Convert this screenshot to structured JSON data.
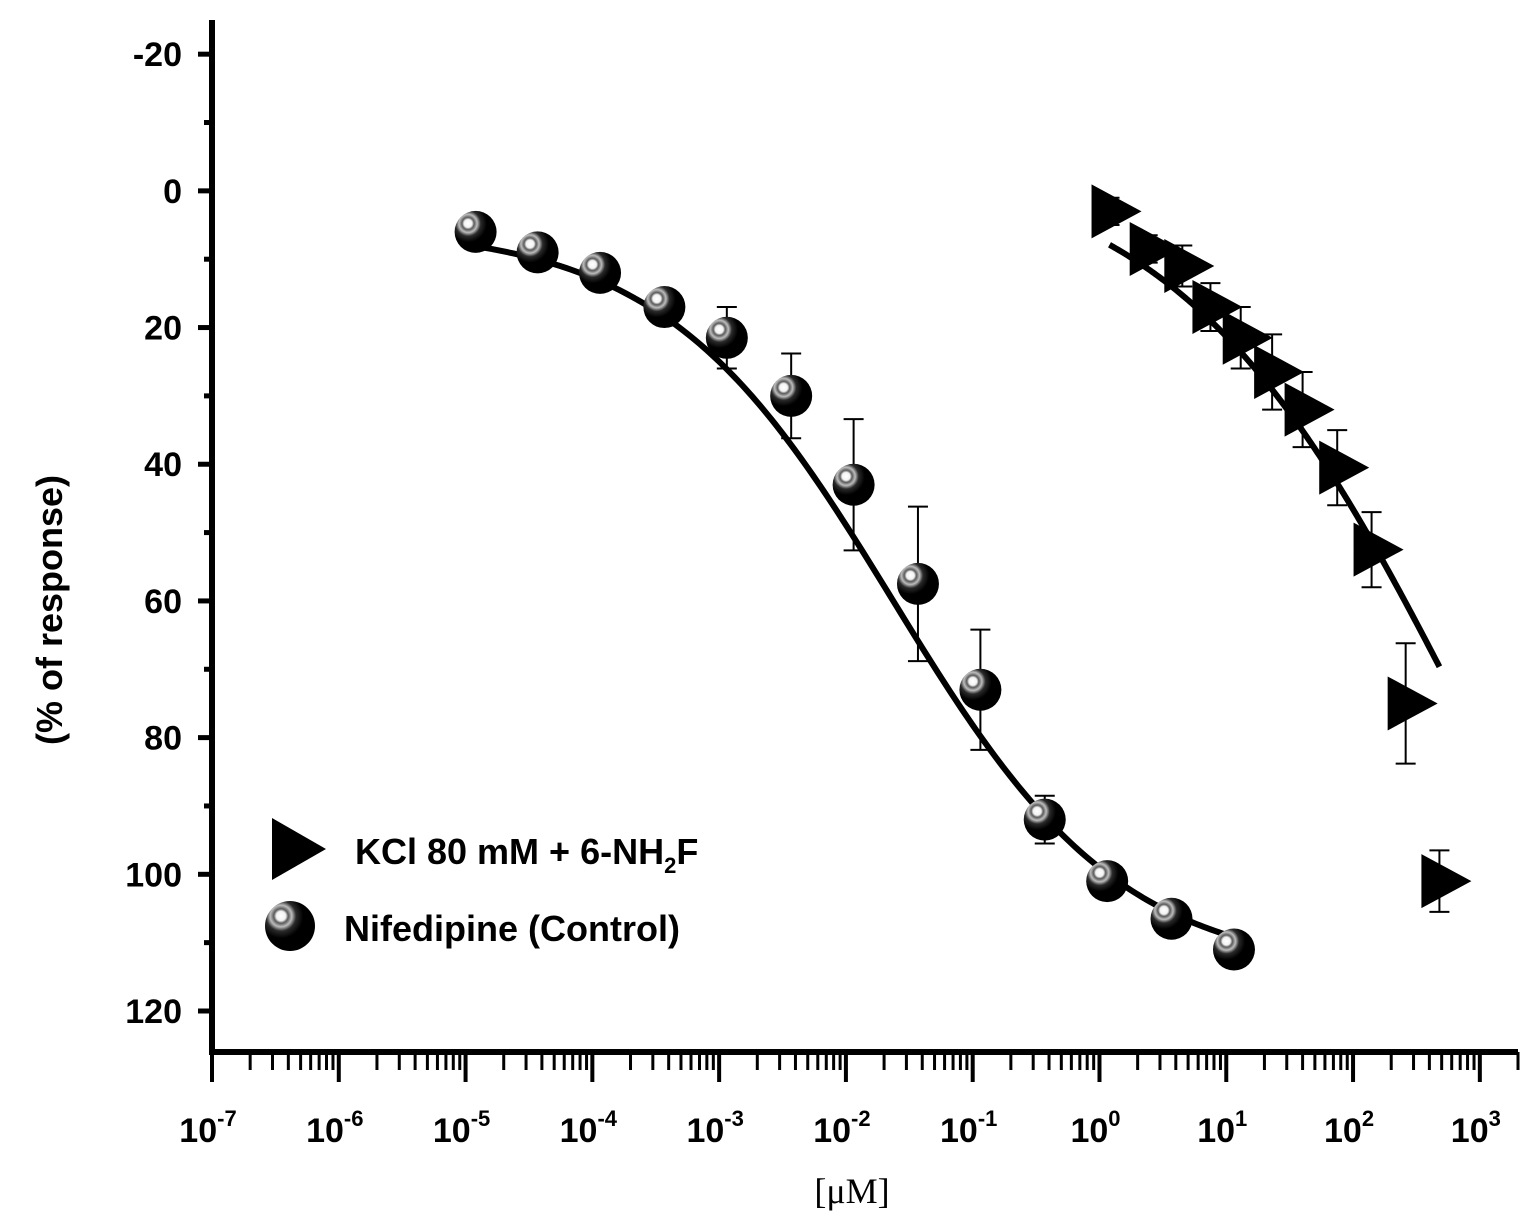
{
  "chart_data": {
    "type": "scatter",
    "title": "",
    "xlabel": "[μM]",
    "ylabel": "(% of response)",
    "xscale": "log",
    "xlim": [
      1e-07,
      2000
    ],
    "ylim": [
      -25,
      126
    ],
    "y_inverted": true,
    "x_ticks": [
      {
        "value": 1e-07,
        "base": "10",
        "exp": "-7"
      },
      {
        "value": 1e-06,
        "base": "10",
        "exp": "-6"
      },
      {
        "value": 1e-05,
        "base": "10",
        "exp": "-5"
      },
      {
        "value": 0.0001,
        "base": "10",
        "exp": "-4"
      },
      {
        "value": 0.001,
        "base": "10",
        "exp": "-3"
      },
      {
        "value": 0.01,
        "base": "10",
        "exp": "-2"
      },
      {
        "value": 0.1,
        "base": "10",
        "exp": "-1"
      },
      {
        "value": 1,
        "base": "10",
        "exp": "0"
      },
      {
        "value": 10,
        "base": "10",
        "exp": "1"
      },
      {
        "value": 100,
        "base": "10",
        "exp": "2"
      },
      {
        "value": 1000,
        "base": "10",
        "exp": "3"
      }
    ],
    "y_ticks": [
      {
        "value": -20,
        "label": "-20"
      },
      {
        "value": 0,
        "label": "0"
      },
      {
        "value": 20,
        "label": "20"
      },
      {
        "value": 40,
        "label": "40"
      },
      {
        "value": 60,
        "label": "60"
      },
      {
        "value": 80,
        "label": "80"
      },
      {
        "value": 100,
        "label": "100"
      },
      {
        "value": 120,
        "label": "120"
      }
    ],
    "legend": {
      "position": "bottom-left",
      "entries": [
        {
          "series": "kcl",
          "label_main": "KCl 80 mM + 6-NH",
          "label_sub": "2",
          "label_end": "F"
        },
        {
          "series": "nifedipine",
          "label_main": "Nifedipine (Control)",
          "label_sub": "",
          "label_end": ""
        }
      ]
    },
    "series": [
      {
        "id": "nifedipine",
        "name": "Nifedipine (Control)",
        "marker": "sphere",
        "color": "#000000",
        "fit": {
          "bottom": 5.3,
          "top": 114.5,
          "log_ic50": -1.63,
          "hill": 0.48
        },
        "points": [
          {
            "x": 1.2e-05,
            "y": 6,
            "err": 0
          },
          {
            "x": 3.7e-05,
            "y": 9,
            "err": 0
          },
          {
            "x": 0.000115,
            "y": 12,
            "err": 0
          },
          {
            "x": 0.00037,
            "y": 17,
            "err": 0
          },
          {
            "x": 0.00115,
            "y": 21.5,
            "err": 4.5
          },
          {
            "x": 0.0037,
            "y": 30,
            "err": 6.2
          },
          {
            "x": 0.0115,
            "y": 43,
            "err": 9.6
          },
          {
            "x": 0.037,
            "y": 57.5,
            "err": 11.3
          },
          {
            "x": 0.115,
            "y": 73,
            "err": 8.8
          },
          {
            "x": 0.37,
            "y": 92,
            "err": 3.5
          },
          {
            "x": 1.15,
            "y": 101,
            "err": 1.5
          },
          {
            "x": 3.7,
            "y": 106.5,
            "err": 1.5
          },
          {
            "x": 11.5,
            "y": 111,
            "err": 1.5
          }
        ]
      },
      {
        "id": "kcl",
        "name": "KCl 80 mM + 6-NH2F",
        "marker": "triangle-right",
        "color": "#000000",
        "fit": {
          "bottom": -5,
          "top": 160,
          "log_ic50": 2.9,
          "hill": 0.38
        },
        "points": [
          {
            "x": 1.2,
            "y": 3,
            "err": 2
          },
          {
            "x": 2.4,
            "y": 8.5,
            "err": 2
          },
          {
            "x": 4.5,
            "y": 11,
            "err": 3
          },
          {
            "x": 7.5,
            "y": 17,
            "err": 3.5
          },
          {
            "x": 13,
            "y": 21.5,
            "err": 4.5
          },
          {
            "x": 23,
            "y": 26.5,
            "err": 5.5
          },
          {
            "x": 40,
            "y": 32,
            "err": 5.5
          },
          {
            "x": 75,
            "y": 40.5,
            "err": 5.5
          },
          {
            "x": 140,
            "y": 52.5,
            "err": 5.5
          },
          {
            "x": 260,
            "y": 75,
            "err": 8.8
          },
          {
            "x": 480,
            "y": 101,
            "err": 4.5
          }
        ]
      }
    ]
  }
}
